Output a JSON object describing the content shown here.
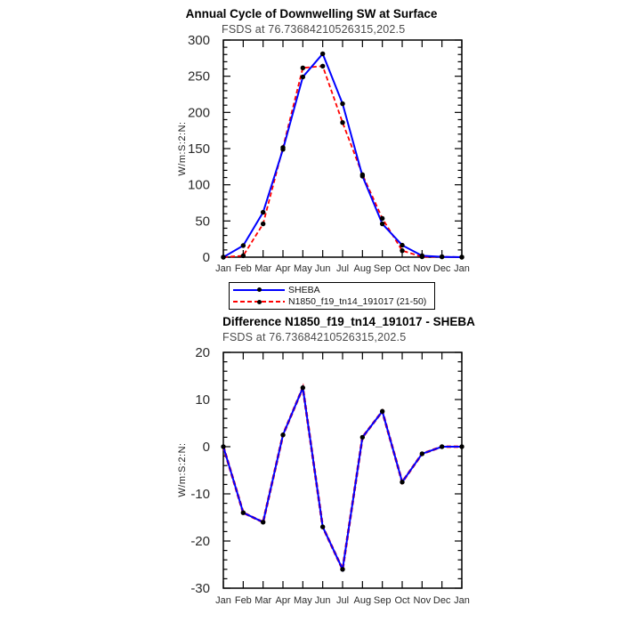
{
  "page": {
    "background": "#ffffff"
  },
  "chart_data": [
    {
      "id": "annual-cycle",
      "type": "line",
      "title": "Annual Cycle of Downwelling SW at Surface",
      "subtitle": "FSDS at 76.73684210526315,202.5",
      "ylabel": "W/m:S:2:N:",
      "xlabel": "",
      "categories": [
        "Jan",
        "Feb",
        "Mar",
        "Apr",
        "May",
        "Jun",
        "Jul",
        "Aug",
        "Sep",
        "Oct",
        "Nov",
        "Dec",
        "Jan"
      ],
      "ylim": [
        0,
        300
      ],
      "yticks": [
        0,
        50,
        100,
        150,
        200,
        250,
        300
      ],
      "y_minor_step": 10,
      "grid": false,
      "legend_position": "below",
      "marker_color": "#000000",
      "series": [
        {
          "name": "SHEBA",
          "color": "#0000ff",
          "line_style": "solid",
          "values": [
            0,
            16,
            62,
            149,
            249,
            281,
            212,
            112,
            46,
            16.5,
            2,
            0.5,
            0
          ]
        },
        {
          "name": "N1850_f19_tn14_191017 (21-50)",
          "color": "#ff0000",
          "line_style": "dashed",
          "values": [
            0,
            2,
            46,
            151.5,
            261.5,
            264,
            186,
            114,
            53.5,
            9,
            0.5,
            0.5,
            0
          ]
        }
      ]
    },
    {
      "id": "difference",
      "type": "line",
      "title": "Difference N1850_f19_tn14_191017 - SHEBA",
      "subtitle": "FSDS at 76.73684210526315,202.5",
      "ylabel": "W/m:S:2:N:",
      "xlabel": "",
      "categories": [
        "Jan",
        "Feb",
        "Mar",
        "Apr",
        "May",
        "Jun",
        "Jul",
        "Aug",
        "Sep",
        "Oct",
        "Nov",
        "Dec",
        "Jan"
      ],
      "ylim": [
        -30,
        20
      ],
      "yticks": [
        -30,
        -20,
        -10,
        0,
        10,
        20
      ],
      "y_minor_step": 2,
      "grid": false,
      "marker_color": "#000000",
      "series": [
        {
          "name": "N1850_f19_tn14_191017 - SHEBA",
          "color": "#0000ff",
          "line_style": "solid",
          "under_color": "#ff0000",
          "values": [
            0,
            -14,
            -16,
            2.5,
            12.5,
            -17,
            -26,
            2,
            7.5,
            -7.5,
            -1.5,
            0,
            0
          ]
        }
      ]
    }
  ],
  "legend": {
    "items": [
      {
        "label": "SHEBA",
        "color": "#0000ff",
        "line_style": "solid",
        "marker": "dot"
      },
      {
        "label": "N1850_f19_tn14_191017 (21-50)",
        "color": "#ff0000",
        "line_style": "dashed",
        "marker": "dot"
      }
    ]
  }
}
